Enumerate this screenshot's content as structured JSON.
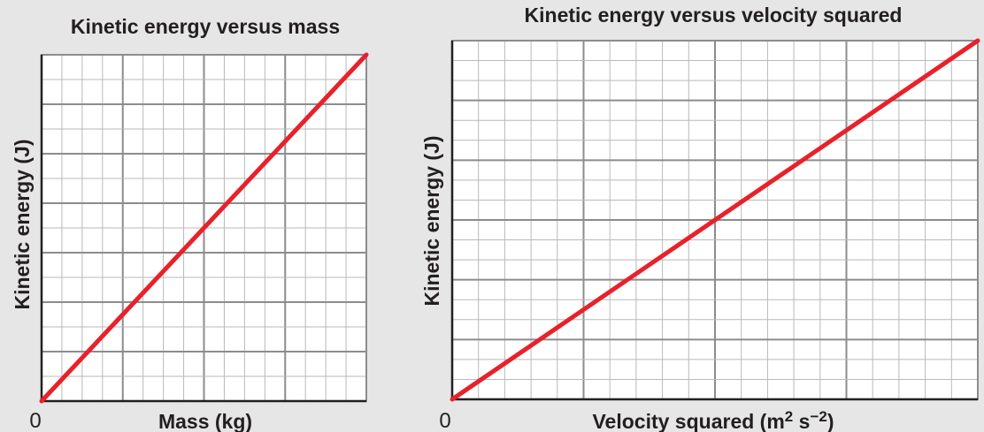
{
  "chart_data": [
    {
      "type": "line",
      "title": "Kinetic energy versus mass",
      "xlabel": "Mass (kg)",
      "ylabel": "Kinetic energy (J)",
      "origin_label": "0",
      "xlim": [
        0,
        1
      ],
      "ylim": [
        0,
        1
      ],
      "grid": true,
      "series": [
        {
          "x": [
            0,
            1
          ],
          "y": [
            0,
            1
          ],
          "color": "#e8212a"
        }
      ]
    },
    {
      "type": "line",
      "title": "Kinetic energy versus velocity squared",
      "xlabel_main": "Velocity squared (m",
      "xlabel_exp1": "2",
      "xlabel_mid": " s",
      "xlabel_exp2": "−2",
      "xlabel_end": ")",
      "ylabel": "Kinetic energy (J)",
      "origin_label": "0",
      "xlim": [
        0,
        1
      ],
      "ylim": [
        0,
        1
      ],
      "grid": true,
      "series": [
        {
          "x": [
            0,
            1
          ],
          "y": [
            0,
            1
          ],
          "color": "#e8212a"
        }
      ]
    }
  ]
}
